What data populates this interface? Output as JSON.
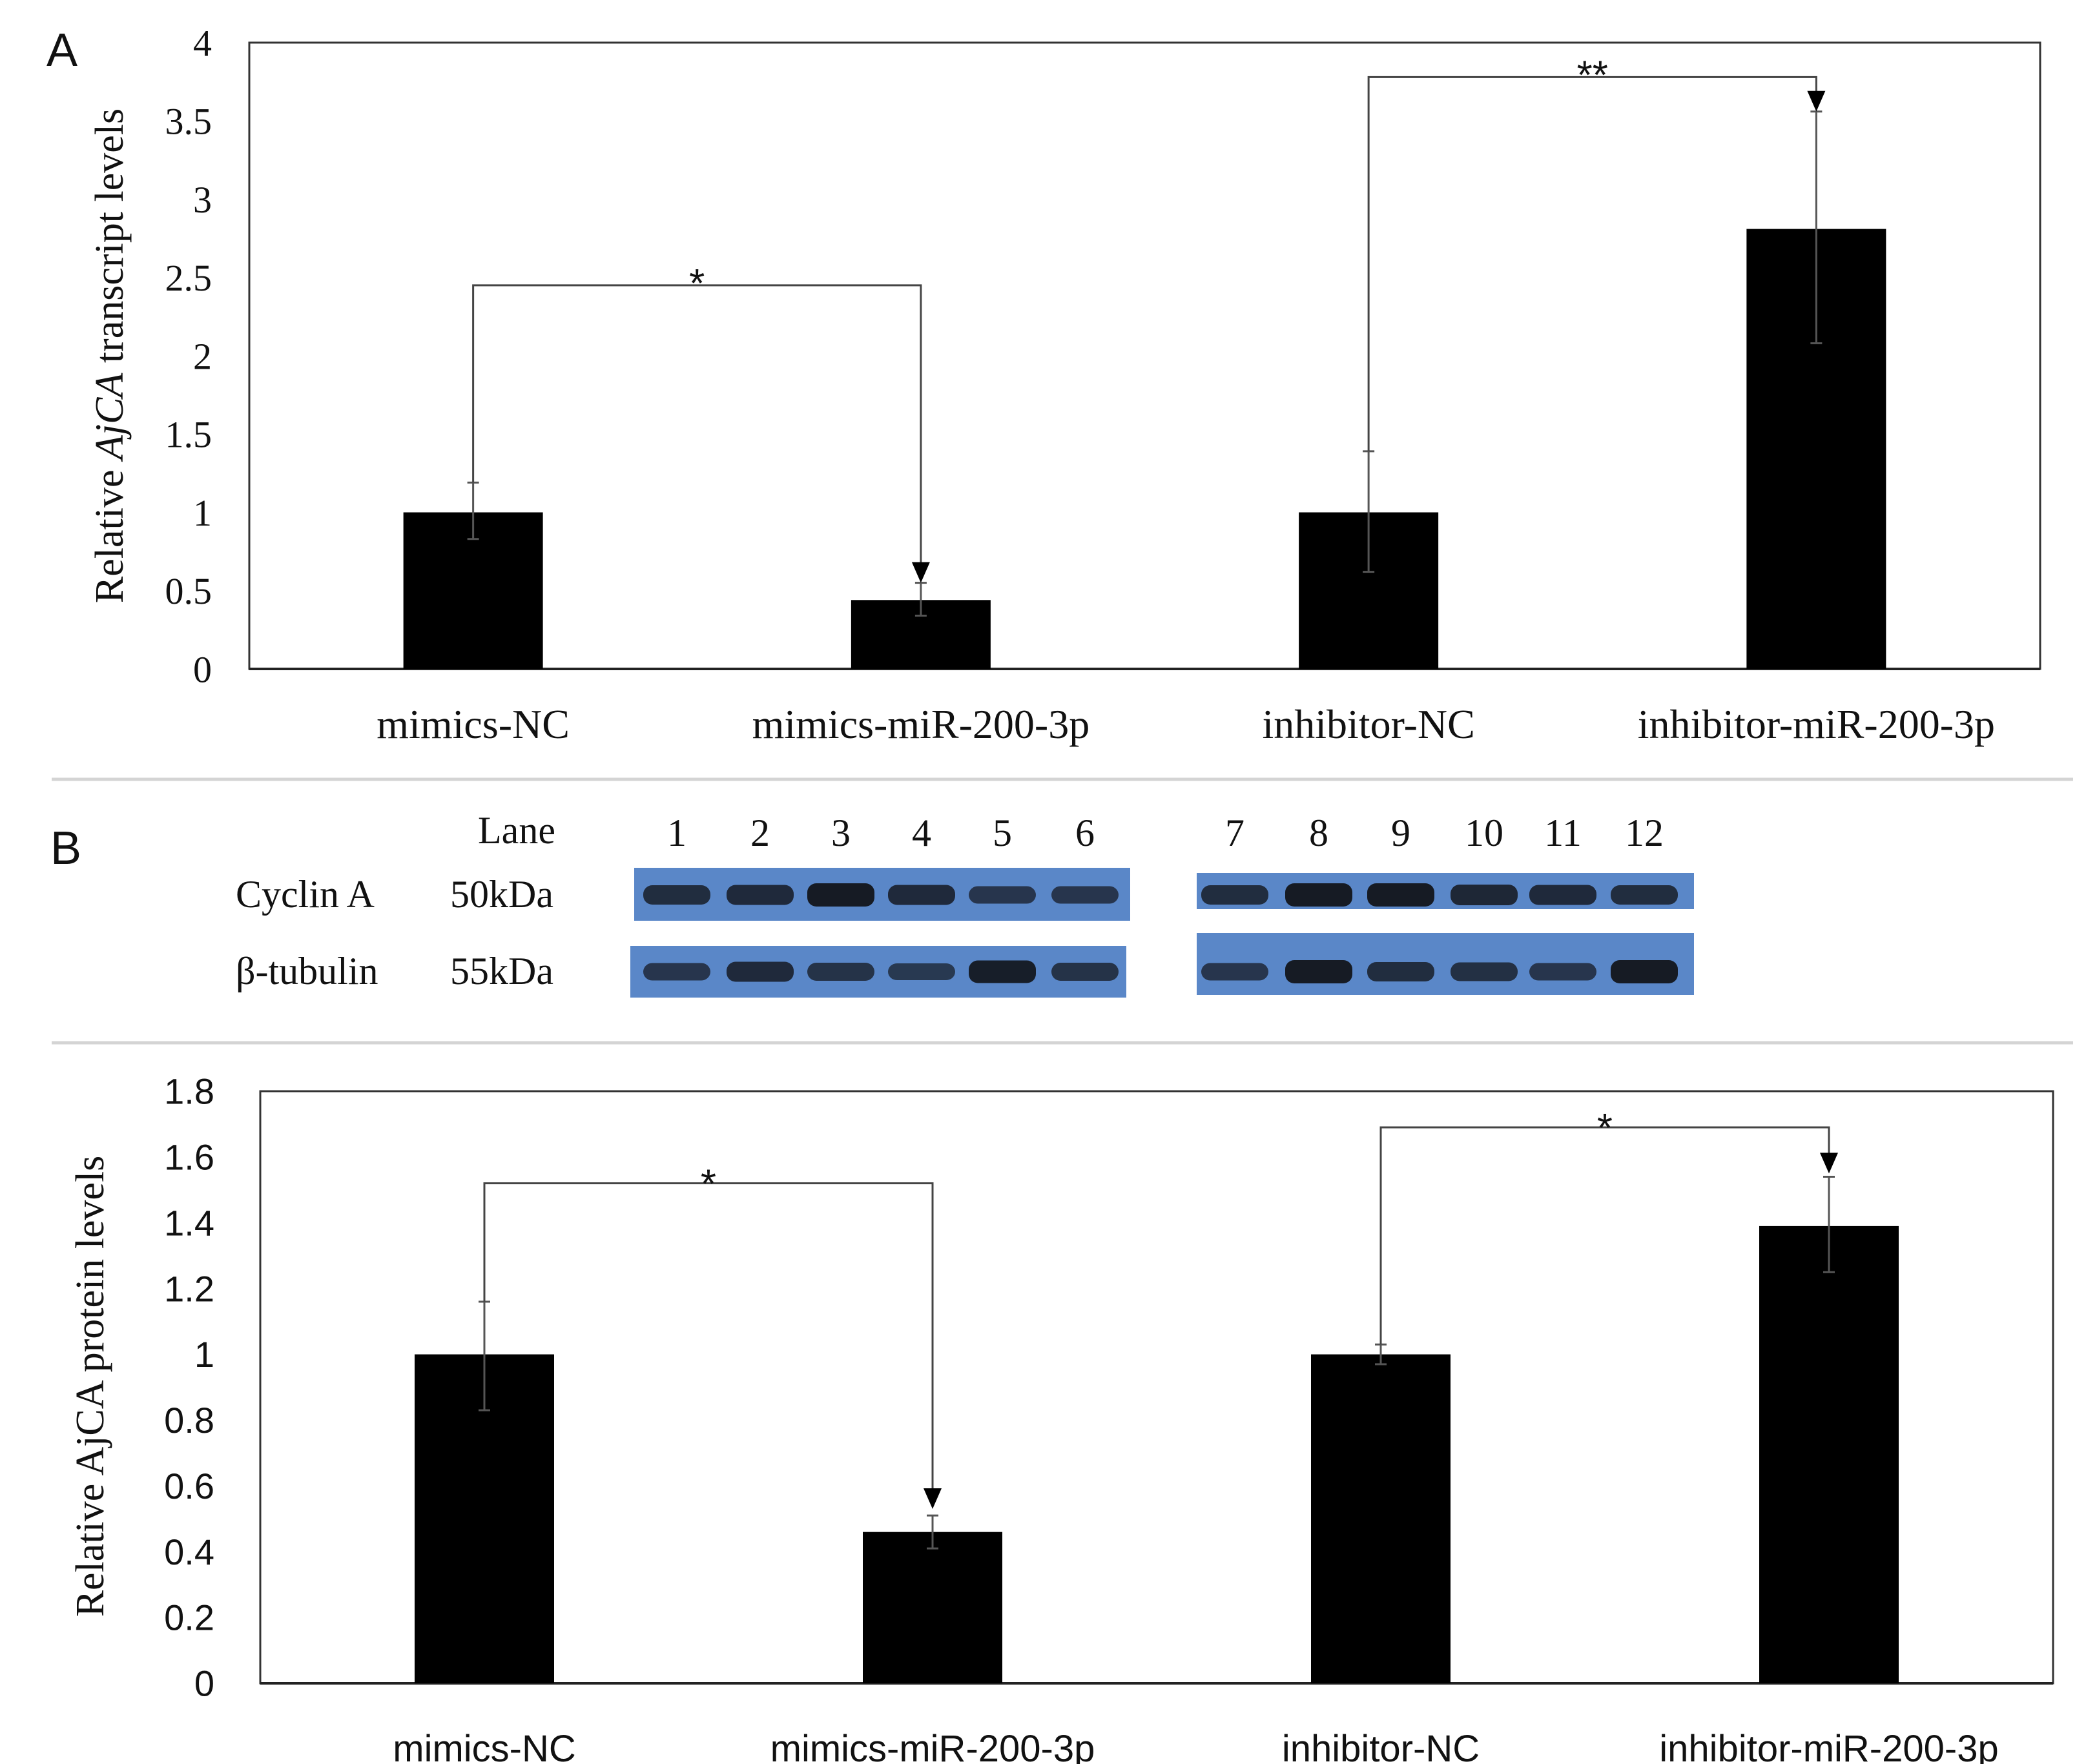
{
  "panels": {
    "a_label": "A",
    "b_label": "B"
  },
  "chart_data": [
    {
      "type": "bar",
      "id": "transcript",
      "title": "",
      "xlabel": "",
      "ylabel_parts": [
        "Relative ",
        "AjCA",
        " transcript levels"
      ],
      "categories": [
        "mimics-NC",
        "mimics-miR-200-3p",
        "inhibitor-NC",
        "inhibitor-miR-200-3p"
      ],
      "values": [
        1.0,
        0.44,
        1.0,
        2.81
      ],
      "errors_upper": [
        1.19,
        0.55,
        1.39,
        3.56
      ],
      "errors_lower": [
        0.83,
        0.34,
        0.62,
        2.08
      ],
      "ylim": [
        0,
        4
      ],
      "yticks": [
        "0",
        "0.5",
        "1",
        "1.5",
        "2",
        "2.5",
        "3",
        "3.5",
        "4"
      ],
      "bar_color": "#000000",
      "grid": false,
      "annotations": [
        {
          "from": 0,
          "to": 1,
          "label": "*",
          "bracket_y": 2.45,
          "from_top": 1.19,
          "arrow_tip": 0.55
        },
        {
          "from": 2,
          "to": 3,
          "label": "**",
          "bracket_y": 3.78,
          "from_top": 1.39,
          "arrow_tip": 3.56
        }
      ]
    },
    {
      "type": "bar",
      "id": "protein",
      "title": "",
      "xlabel": "",
      "ylabel": "Relative AjCA protein levels",
      "categories": [
        "mimics-NC",
        "mimics-miR-200-3p",
        "inhibitor-NC",
        "inhibitor-miR-200-3p"
      ],
      "values": [
        1.0,
        0.46,
        1.0,
        1.39
      ],
      "errors_upper": [
        1.16,
        0.51,
        1.03,
        1.54
      ],
      "errors_lower": [
        0.83,
        0.41,
        0.97,
        1.25
      ],
      "ylim": [
        0,
        1.8
      ],
      "yticks": [
        "0",
        "0.2",
        "0.4",
        "0.6",
        "0.8",
        "1",
        "1.2",
        "1.4",
        "1.6",
        "1.8"
      ],
      "bar_color": "#000000",
      "grid": false,
      "annotations": [
        {
          "from": 0,
          "to": 1,
          "label": "*",
          "bracket_y": 1.52,
          "from_top": 1.16,
          "arrow_tip": 0.53
        },
        {
          "from": 2,
          "to": 3,
          "label": "*",
          "bracket_y": 1.69,
          "from_top": 1.03,
          "arrow_tip": 1.55
        }
      ]
    }
  ],
  "western_blot": {
    "lane_header": "Lane",
    "lanes_left": [
      "1",
      "2",
      "3",
      "4",
      "5",
      "6"
    ],
    "lanes_right": [
      "7",
      "8",
      "9",
      "10",
      "11",
      "12"
    ],
    "rows": [
      {
        "protein": "Cyclin A",
        "size": "50kDa",
        "band_intensity": [
          0.7,
          0.75,
          1.0,
          0.75,
          0.55,
          0.55,
          0.7,
          1.0,
          1.0,
          0.8,
          0.75,
          0.7
        ]
      },
      {
        "protein": "β-tubulin",
        "size": "55kDa",
        "band_intensity": [
          0.55,
          0.75,
          0.6,
          0.5,
          0.95,
          0.6,
          0.55,
          1.0,
          0.7,
          0.65,
          0.55,
          1.0
        ]
      }
    ],
    "membrane_color": "#5a87c8",
    "band_color": "#161b24"
  }
}
